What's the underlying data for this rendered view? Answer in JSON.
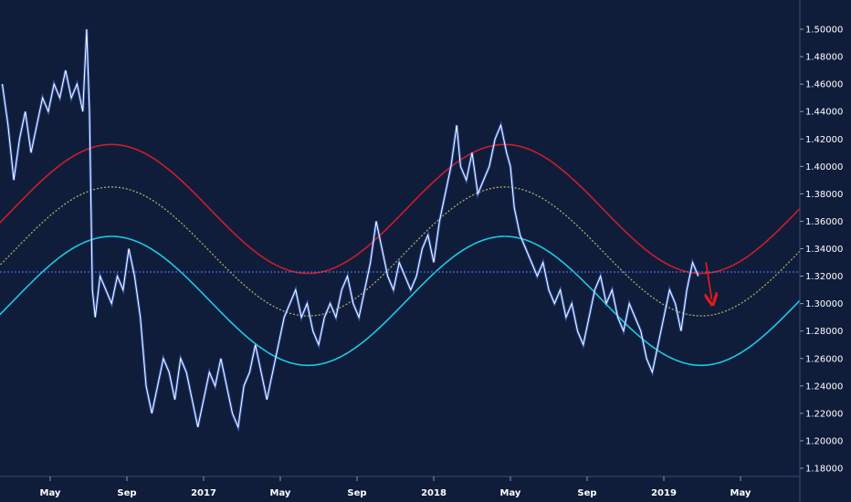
{
  "chart_data": {
    "type": "line",
    "title": "",
    "xlabel": "",
    "ylabel": "",
    "ylim": [
      1.17,
      1.51
    ],
    "y_ticks": [
      "1.50000",
      "1.48000",
      "1.46000",
      "1.44000",
      "1.42000",
      "1.40000",
      "1.38000",
      "1.36000",
      "1.34000",
      "1.32000",
      "1.30000",
      "1.28000",
      "1.26000",
      "1.24000",
      "1.22000",
      "1.20000",
      "1.18000"
    ],
    "x_ticks": [
      {
        "label": "May",
        "t": 0.0
      },
      {
        "label": "Sep",
        "t": 4.0
      },
      {
        "label": "2017",
        "t": 8.0
      },
      {
        "label": "May",
        "t": 12.0
      },
      {
        "label": "Sep",
        "t": 16.0
      },
      {
        "label": "2018",
        "t": 20.0
      },
      {
        "label": "May",
        "t": 24.0
      },
      {
        "label": "Sep",
        "t": 28.0
      },
      {
        "label": "2019",
        "t": 32.0
      },
      {
        "label": "May",
        "t": 36.0
      }
    ],
    "horizontal_line": {
      "value": 1.323,
      "color": "#4f7fff"
    },
    "cycles": {
      "period_months": 20.5,
      "peak_at_month": 3.2,
      "amplitude": 0.047,
      "upper": {
        "center": 1.369,
        "color": "#cc1d2a"
      },
      "middle": {
        "center": 1.338,
        "color": "#b9b46a"
      },
      "lower": {
        "center": 1.302,
        "color": "#1fc8e0"
      }
    },
    "price_series": {
      "color": "#ffffff",
      "points": [
        [
          -2.5,
          1.46
        ],
        [
          -2.2,
          1.43
        ],
        [
          -1.9,
          1.39
        ],
        [
          -1.6,
          1.42
        ],
        [
          -1.3,
          1.44
        ],
        [
          -1.0,
          1.41
        ],
        [
          -0.7,
          1.43
        ],
        [
          -0.4,
          1.45
        ],
        [
          -0.1,
          1.44
        ],
        [
          0.2,
          1.46
        ],
        [
          0.5,
          1.45
        ],
        [
          0.8,
          1.47
        ],
        [
          1.1,
          1.45
        ],
        [
          1.4,
          1.46
        ],
        [
          1.7,
          1.44
        ],
        [
          1.9,
          1.5
        ],
        [
          2.05,
          1.44
        ],
        [
          2.2,
          1.31
        ],
        [
          2.35,
          1.29
        ],
        [
          2.6,
          1.32
        ],
        [
          2.9,
          1.31
        ],
        [
          3.2,
          1.3
        ],
        [
          3.5,
          1.32
        ],
        [
          3.8,
          1.31
        ],
        [
          4.1,
          1.34
        ],
        [
          4.4,
          1.32
        ],
        [
          4.7,
          1.29
        ],
        [
          5.0,
          1.24
        ],
        [
          5.3,
          1.22
        ],
        [
          5.6,
          1.24
        ],
        [
          5.9,
          1.26
        ],
        [
          6.2,
          1.25
        ],
        [
          6.5,
          1.23
        ],
        [
          6.8,
          1.26
        ],
        [
          7.1,
          1.25
        ],
        [
          7.4,
          1.23
        ],
        [
          7.7,
          1.21
        ],
        [
          8.0,
          1.23
        ],
        [
          8.3,
          1.25
        ],
        [
          8.6,
          1.24
        ],
        [
          8.9,
          1.26
        ],
        [
          9.2,
          1.24
        ],
        [
          9.5,
          1.22
        ],
        [
          9.8,
          1.21
        ],
        [
          10.1,
          1.24
        ],
        [
          10.4,
          1.25
        ],
        [
          10.7,
          1.27
        ],
        [
          11.0,
          1.25
        ],
        [
          11.3,
          1.23
        ],
        [
          11.6,
          1.25
        ],
        [
          11.9,
          1.27
        ],
        [
          12.2,
          1.29
        ],
        [
          12.5,
          1.3
        ],
        [
          12.8,
          1.31
        ],
        [
          13.1,
          1.29
        ],
        [
          13.4,
          1.3
        ],
        [
          13.7,
          1.28
        ],
        [
          14.0,
          1.27
        ],
        [
          14.3,
          1.29
        ],
        [
          14.6,
          1.3
        ],
        [
          14.9,
          1.29
        ],
        [
          15.2,
          1.31
        ],
        [
          15.5,
          1.32
        ],
        [
          15.8,
          1.3
        ],
        [
          16.1,
          1.29
        ],
        [
          16.4,
          1.31
        ],
        [
          16.7,
          1.33
        ],
        [
          17.0,
          1.36
        ],
        [
          17.3,
          1.34
        ],
        [
          17.6,
          1.32
        ],
        [
          17.9,
          1.31
        ],
        [
          18.2,
          1.33
        ],
        [
          18.5,
          1.32
        ],
        [
          18.8,
          1.31
        ],
        [
          19.1,
          1.32
        ],
        [
          19.4,
          1.34
        ],
        [
          19.7,
          1.35
        ],
        [
          20.0,
          1.33
        ],
        [
          20.3,
          1.36
        ],
        [
          20.6,
          1.38
        ],
        [
          20.9,
          1.4
        ],
        [
          21.2,
          1.43
        ],
        [
          21.4,
          1.4
        ],
        [
          21.7,
          1.39
        ],
        [
          22.0,
          1.41
        ],
        [
          22.3,
          1.38
        ],
        [
          22.6,
          1.39
        ],
        [
          22.9,
          1.4
        ],
        [
          23.2,
          1.42
        ],
        [
          23.5,
          1.43
        ],
        [
          23.8,
          1.41
        ],
        [
          24.0,
          1.4
        ],
        [
          24.2,
          1.37
        ],
        [
          24.5,
          1.35
        ],
        [
          24.8,
          1.34
        ],
        [
          25.1,
          1.33
        ],
        [
          25.4,
          1.32
        ],
        [
          25.7,
          1.33
        ],
        [
          26.0,
          1.31
        ],
        [
          26.3,
          1.3
        ],
        [
          26.6,
          1.31
        ],
        [
          26.9,
          1.29
        ],
        [
          27.2,
          1.3
        ],
        [
          27.5,
          1.28
        ],
        [
          27.8,
          1.27
        ],
        [
          28.1,
          1.29
        ],
        [
          28.4,
          1.31
        ],
        [
          28.7,
          1.32
        ],
        [
          29.0,
          1.3
        ],
        [
          29.3,
          1.31
        ],
        [
          29.6,
          1.29
        ],
        [
          29.9,
          1.28
        ],
        [
          30.2,
          1.3
        ],
        [
          30.5,
          1.29
        ],
        [
          30.8,
          1.28
        ],
        [
          31.1,
          1.26
        ],
        [
          31.4,
          1.25
        ],
        [
          31.7,
          1.27
        ],
        [
          32.0,
          1.29
        ],
        [
          32.3,
          1.31
        ],
        [
          32.6,
          1.3
        ],
        [
          32.9,
          1.28
        ],
        [
          33.2,
          1.31
        ],
        [
          33.5,
          1.33
        ],
        [
          33.8,
          1.32
        ]
      ]
    },
    "arrow": {
      "from": [
        34.2,
        1.33
      ],
      "to": [
        34.5,
        1.303
      ],
      "color": "#e01b1b"
    }
  }
}
